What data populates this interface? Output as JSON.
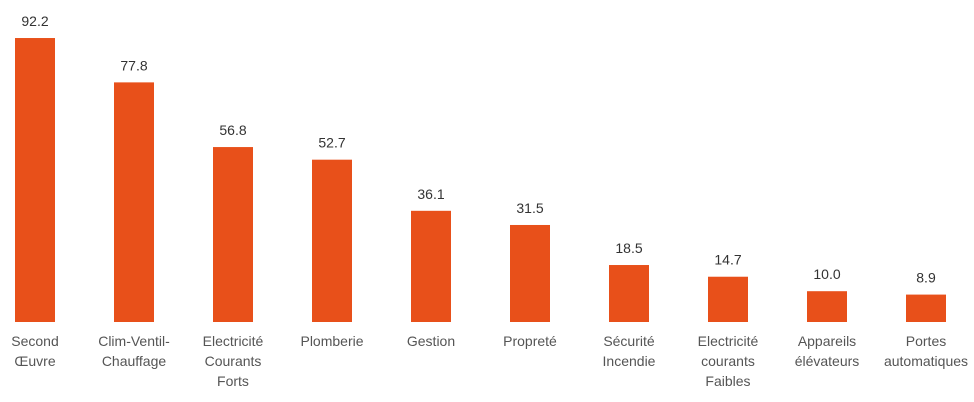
{
  "chart_data": {
    "type": "bar",
    "categories": [
      "Second Œuvre",
      "Clim-Ventil-Chauffage",
      "Electricité Courants Forts",
      "Plomberie",
      "Gestion",
      "Propreté",
      "Sécurité Incendie",
      "Electricité courants Faibles",
      "Appareils élévateurs",
      "Portes automatiques"
    ],
    "values": [
      92.2,
      77.8,
      56.8,
      52.7,
      36.1,
      31.5,
      18.5,
      14.7,
      10,
      8.9
    ],
    "value_labels": [
      "92.2",
      "77.8",
      "56.8",
      "52.7",
      "36.1",
      "31.5",
      "18.5",
      "14.7",
      "10.0",
      "8.9"
    ],
    "color": "#e8501a"
  }
}
